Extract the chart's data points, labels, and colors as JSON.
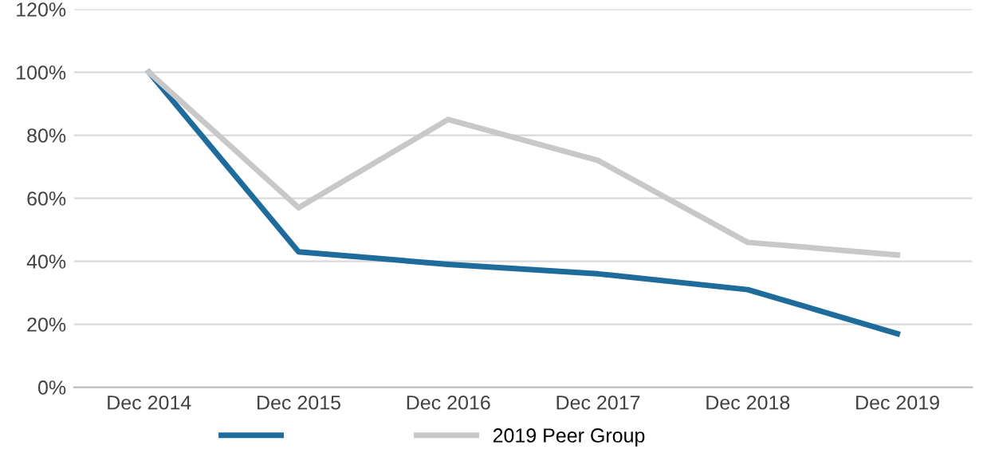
{
  "chart_data": {
    "type": "line",
    "categories": [
      "Dec 2014",
      "Dec 2015",
      "Dec 2016",
      "Dec 2017",
      "Dec 2018",
      "Dec 2019"
    ],
    "series": [
      {
        "color": "#1f6b9c",
        "values": [
          100,
          43,
          39,
          36,
          31,
          17
        ]
      },
      {
        "name": "2019 Peer Group",
        "color": "#c8c8c8",
        "values": [
          100,
          57,
          85,
          72,
          46,
          42
        ]
      }
    ],
    "ylim": [
      0,
      120
    ],
    "yticks": [
      {
        "value": 0,
        "label": "0%"
      },
      {
        "value": 20,
        "label": "20%"
      },
      {
        "value": 40,
        "label": "40%"
      },
      {
        "value": 60,
        "label": "60%"
      },
      {
        "value": 80,
        "label": "80%"
      },
      {
        "value": 100,
        "label": "100%"
      },
      {
        "value": 120,
        "label": "120%"
      }
    ],
    "grid": "y",
    "legend": "bottom",
    "marker": "none",
    "line_style": "solid"
  }
}
